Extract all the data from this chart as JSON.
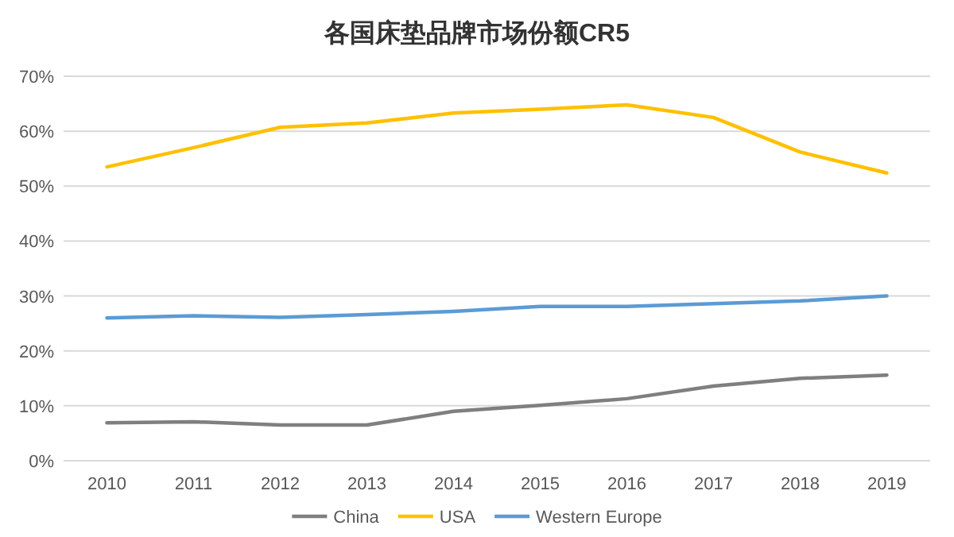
{
  "chart_data": {
    "type": "line",
    "title": "各国床垫品牌市场份额CR5",
    "categories": [
      "2010",
      "2011",
      "2012",
      "2013",
      "2014",
      "2015",
      "2016",
      "2017",
      "2018",
      "2019"
    ],
    "series": [
      {
        "name": "China",
        "color": "#7f7f7f",
        "values": [
          6.9,
          7.1,
          6.5,
          6.5,
          9.0,
          10.1,
          11.3,
          13.6,
          15.0,
          15.6
        ]
      },
      {
        "name": "USA",
        "color": "#ffc000",
        "values": [
          53.5,
          57.0,
          60.7,
          61.5,
          63.3,
          64.0,
          64.8,
          62.5,
          56.2,
          52.4
        ]
      },
      {
        "name": "Western Europe",
        "color": "#5b9bd5",
        "values": [
          26.0,
          26.4,
          26.1,
          26.6,
          27.2,
          28.1,
          28.1,
          28.6,
          29.1,
          30.0
        ]
      }
    ],
    "ylim": [
      0,
      70
    ],
    "yticks": [
      {
        "value": 0,
        "label": "0%"
      },
      {
        "value": 10,
        "label": "10%"
      },
      {
        "value": 20,
        "label": "20%"
      },
      {
        "value": 30,
        "label": "30%"
      },
      {
        "value": 40,
        "label": "40%"
      },
      {
        "value": 50,
        "label": "50%"
      },
      {
        "value": 60,
        "label": "60%"
      },
      {
        "value": 70,
        "label": "70%"
      }
    ],
    "grid": "y",
    "legend": "bottom",
    "marker": "none",
    "line_style": "solid"
  }
}
